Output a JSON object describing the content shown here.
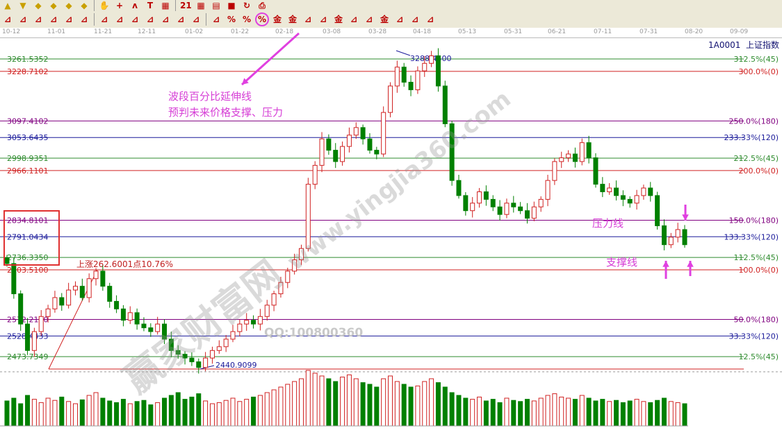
{
  "toolbar": {
    "row1_icons": [
      "arrow-up-icon",
      "arrow-down-icon",
      "diamond-icon",
      "diamond-icon",
      "diamond-icon",
      "diamond-icon",
      "hand-icon",
      "crosshair-icon",
      "zigzag-icon",
      "text-icon",
      "grid-icon",
      "calendar-icon",
      "calculator-icon",
      "note-icon",
      "save-icon",
      "refresh-icon",
      "print-icon"
    ],
    "row2_icons": [
      "channel-icon",
      "parallel-icon",
      "fork-icon",
      "box-icon",
      "fan-icon",
      "arc-icon",
      "fan-box-icon",
      "square-icon",
      "angle-icon",
      "wave-icon",
      "grid-box-icon",
      "grid-fib-icon",
      "speed-line-icon",
      "fib-time-icon",
      "percent-line-icon",
      "percent-icon",
      "percent-extension-icon",
      "gold-circle-icon",
      "gold-ratio-icon",
      "fire-icon",
      "arc-line-icon",
      "gold-line-icon",
      "j-line-icon",
      "f-line-icon",
      "gold-angle-icon",
      "angle-line-icon",
      "box-line-icon",
      "fourth-line-icon"
    ],
    "highlight_color": "#e040e0"
  },
  "dates": [
    "10-12",
    "11-01",
    "11-21",
    "12-11",
    "01-02",
    "01-22",
    "02-18",
    "03-08",
    "03-28",
    "04-18",
    "05-13",
    "05-31",
    "06-21",
    "07-11",
    "07-31",
    "08-20",
    "09-09"
  ],
  "symbol": "1A0001  上证指数",
  "chart_data": {
    "type": "candlestick",
    "ylim": [
      2440.9099,
      3288.45
    ],
    "levels": [
      {
        "price": 3261.5352,
        "label": "3261.5352",
        "pct": "312.5%(45)",
        "color": "#2e8b2e"
      },
      {
        "price": 3228.7102,
        "label": "3228.7102",
        "pct": "300.0%(0)",
        "color": "#d02020"
      },
      {
        "price": 3097.4102,
        "label": "3097.4102",
        "pct": "250.0%(180)",
        "color": "#800080"
      },
      {
        "price": 3053.6435,
        "label": "3053.6435",
        "pct": "233.33%(120)",
        "color": "#1a1a9a"
      },
      {
        "price": 2998.9351,
        "label": "2998.9351",
        "pct": "212.5%(45)",
        "color": "#2e8b2e"
      },
      {
        "price": 2966.1101,
        "label": "2966.1101",
        "pct": "200.0%(0)",
        "color": "#d02020"
      },
      {
        "price": 2834.8101,
        "label": "2834.8101",
        "pct": "150.0%(180)",
        "color": "#800080"
      },
      {
        "price": 2791.0434,
        "label": "2791.0434",
        "pct": "133.33%(120)",
        "color": "#1a1a9a"
      },
      {
        "price": 2736.335,
        "label": "2736.3350",
        "pct": "112.5%(45)",
        "color": "#2e8b2e"
      },
      {
        "price": 2703.51,
        "label": "2703.5100",
        "pct": "100.0%(0)",
        "color": "#d02020"
      },
      {
        "price": 2572.21,
        "label": "2572.2100",
        "pct": "50.0%(180)",
        "color": "#800080"
      },
      {
        "price": 2528.4433,
        "label": "2528.4433",
        "pct": "33.33%(120)",
        "color": "#1a1a9a"
      },
      {
        "price": 2473.7349,
        "label": "2473.7349",
        "pct": "12.5%(45)",
        "color": "#2e8b2e"
      },
      {
        "price": 2440.9099,
        "label": "",
        "pct": "",
        "color": "#d02020"
      }
    ],
    "high_label": "3288.4500",
    "low_label": "2440.9099",
    "rise_label": "上涨262.6001点10.76%",
    "closes": [
      2720,
      2640,
      2560,
      2490,
      2540,
      2580,
      2600,
      2630,
      2610,
      2650,
      2660,
      2630,
      2680,
      2700,
      2660,
      2620,
      2600,
      2570,
      2590,
      2560,
      2550,
      2540,
      2560,
      2520,
      2490,
      2480,
      2470,
      2460,
      2445,
      2470,
      2490,
      2500,
      2520,
      2540,
      2560,
      2570,
      2560,
      2580,
      2610,
      2640,
      2670,
      2700,
      2730,
      2760,
      2930,
      2980,
      3050,
      3020,
      2990,
      3030,
      3060,
      3080,
      3050,
      3020,
      3010,
      3120,
      3190,
      3240,
      3200,
      3180,
      3230,
      3250,
      3270,
      3190,
      3090,
      2940,
      2900,
      2860,
      2880,
      2910,
      2890,
      2870,
      2850,
      2880,
      2870,
      2860,
      2840,
      2870,
      2890,
      2940,
      2990,
      3000,
      3010,
      2990,
      3040,
      3000,
      2930,
      2910,
      2920,
      2900,
      2890,
      2880,
      2900,
      2920,
      2900,
      2820,
      2770,
      2790,
      2810,
      2770
    ],
    "volume": [
      45,
      50,
      40,
      55,
      48,
      42,
      50,
      46,
      52,
      44,
      40,
      47,
      55,
      60,
      50,
      45,
      42,
      48,
      40,
      44,
      46,
      38,
      42,
      50,
      55,
      60,
      48,
      52,
      58,
      45,
      40,
      42,
      46,
      50,
      44,
      48,
      52,
      55,
      60,
      65,
      70,
      75,
      80,
      85,
      100,
      95,
      90,
      85,
      80,
      88,
      92,
      85,
      78,
      75,
      70,
      85,
      90,
      80,
      75,
      70,
      72,
      80,
      85,
      78,
      70,
      60,
      55,
      50,
      48,
      52,
      45,
      48,
      42,
      50,
      46,
      44,
      48,
      45,
      50,
      55,
      58,
      52,
      50,
      48,
      55,
      50,
      45,
      48,
      44,
      46,
      42,
      45,
      48,
      44,
      42,
      46,
      50,
      44,
      42,
      40
    ],
    "up_color": "#d02020",
    "down_color": "#008000"
  },
  "annotations": {
    "title_line1": "波段百分比延伸线",
    "title_line2": "预判未来价格支撑、压力",
    "resistance": "压力线",
    "support": "支撑线",
    "qq": "QQ:100800360",
    "watermark": "赢家财富网 www.yingjia360.com"
  }
}
